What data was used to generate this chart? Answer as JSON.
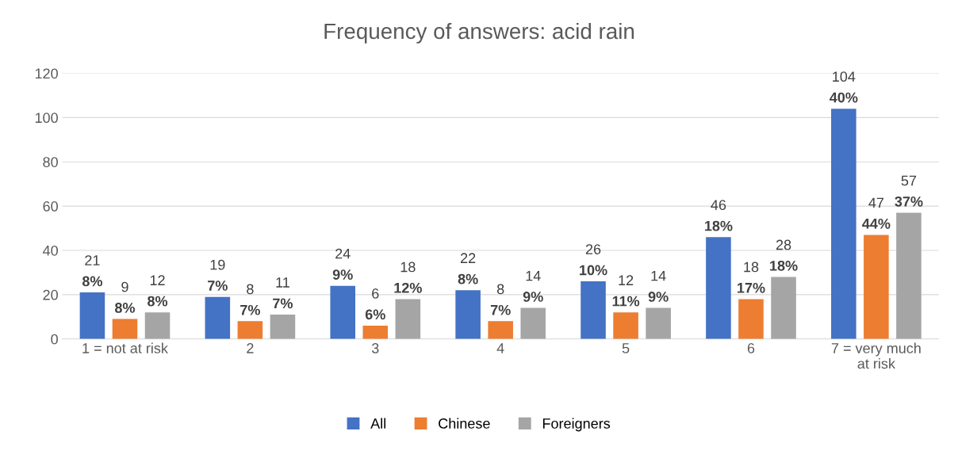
{
  "chart_data": {
    "type": "bar",
    "title": "Frequency of answers: acid rain",
    "categories": [
      "1 = not at risk",
      "2",
      "3",
      "4",
      "5",
      "6",
      "7 = very much\nat risk"
    ],
    "series": [
      {
        "name": "All",
        "color": "#4472c4",
        "values": [
          21,
          19,
          24,
          22,
          26,
          46,
          104
        ],
        "value_labels": [
          "21\n8%",
          "19\n7%",
          "24\n9%",
          "22\n8%",
          "26\n10%",
          "46\n18%",
          "104\n40%"
        ]
      },
      {
        "name": "Chinese",
        "color": "#ed7d31",
        "values": [
          9,
          8,
          6,
          8,
          12,
          18,
          47
        ],
        "value_labels": [
          "9\n8%",
          "8\n7%",
          "6\n6%",
          "8\n7%",
          "12\n11%",
          "18\n17%",
          "47\n44%"
        ]
      },
      {
        "name": "Foreigners",
        "color": "#a5a5a5",
        "values": [
          12,
          11,
          18,
          14,
          14,
          28,
          57
        ],
        "value_labels": [
          "12\n8%",
          "11\n7%",
          "18\n12%",
          "14\n9%",
          "14\n9%",
          "28\n18%",
          "57\n37%"
        ]
      }
    ],
    "ylim": [
      0,
      120
    ],
    "yticks": [
      0,
      20,
      40,
      60,
      80,
      100,
      120
    ],
    "grid": "y",
    "legend": "bottom"
  }
}
